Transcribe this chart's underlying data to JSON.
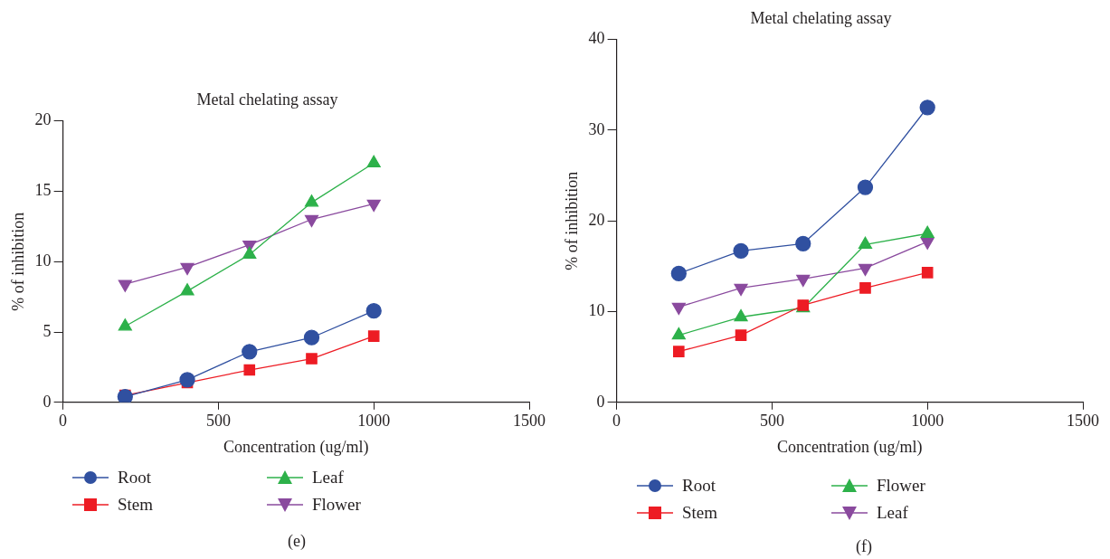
{
  "chart_data": [
    {
      "type": "line",
      "title": "Metal chelating assay",
      "xlabel": "Concentration (ug/ml)",
      "ylabel": "% of inhibition",
      "x": [
        200,
        400,
        600,
        800,
        1000
      ],
      "xlim": [
        0,
        1500
      ],
      "xticks": [
        0,
        500,
        1000,
        1500
      ],
      "ylim": [
        0,
        20
      ],
      "yticks": [
        0,
        5,
        10,
        15,
        20
      ],
      "grid": false,
      "legend": "bottom",
      "annotations": [
        "(e)"
      ],
      "series": [
        {
          "name": "Root",
          "color": "#3050a0",
          "marker": "circle",
          "values": [
            0.4,
            1.6,
            3.6,
            4.6,
            6.5
          ]
        },
        {
          "name": "Stem",
          "color": "#ed1c24",
          "marker": "square",
          "values": [
            0.5,
            1.4,
            2.3,
            3.1,
            4.7
          ]
        },
        {
          "name": "Leaf",
          "color": "#2db14a",
          "marker": "triangle",
          "values": [
            5.4,
            7.9,
            10.5,
            14.2,
            17.0
          ]
        },
        {
          "name": "Flower",
          "color": "#8a4a9e",
          "marker": "triangle_down",
          "values": [
            8.4,
            9.6,
            11.2,
            13.0,
            14.1
          ]
        }
      ]
    },
    {
      "type": "line",
      "title": "Metal chelating assay",
      "xlabel": "Concentration (ug/ml)",
      "ylabel": "% of inhibition",
      "x": [
        200,
        400,
        600,
        800,
        1000
      ],
      "xlim": [
        0,
        1500
      ],
      "xticks": [
        0,
        500,
        1000,
        1500
      ],
      "ylim": [
        0,
        40
      ],
      "yticks": [
        0,
        10,
        20,
        30,
        40
      ],
      "grid": false,
      "legend": "bottom",
      "annotations": [
        "(f)"
      ],
      "series": [
        {
          "name": "Root",
          "color": "#3050a0",
          "marker": "circle",
          "values": [
            14.2,
            16.7,
            17.5,
            23.7,
            32.5
          ]
        },
        {
          "name": "Stem",
          "color": "#ed1c24",
          "marker": "square",
          "values": [
            5.6,
            7.4,
            10.7,
            12.6,
            14.3
          ]
        },
        {
          "name": "Flower",
          "color": "#2db14a",
          "marker": "triangle",
          "values": [
            7.4,
            9.4,
            10.4,
            17.4,
            18.6
          ]
        },
        {
          "name": "Leaf",
          "color": "#8a4a9e",
          "marker": "triangle_down",
          "values": [
            10.5,
            12.6,
            13.6,
            14.8,
            17.7
          ]
        }
      ]
    }
  ]
}
